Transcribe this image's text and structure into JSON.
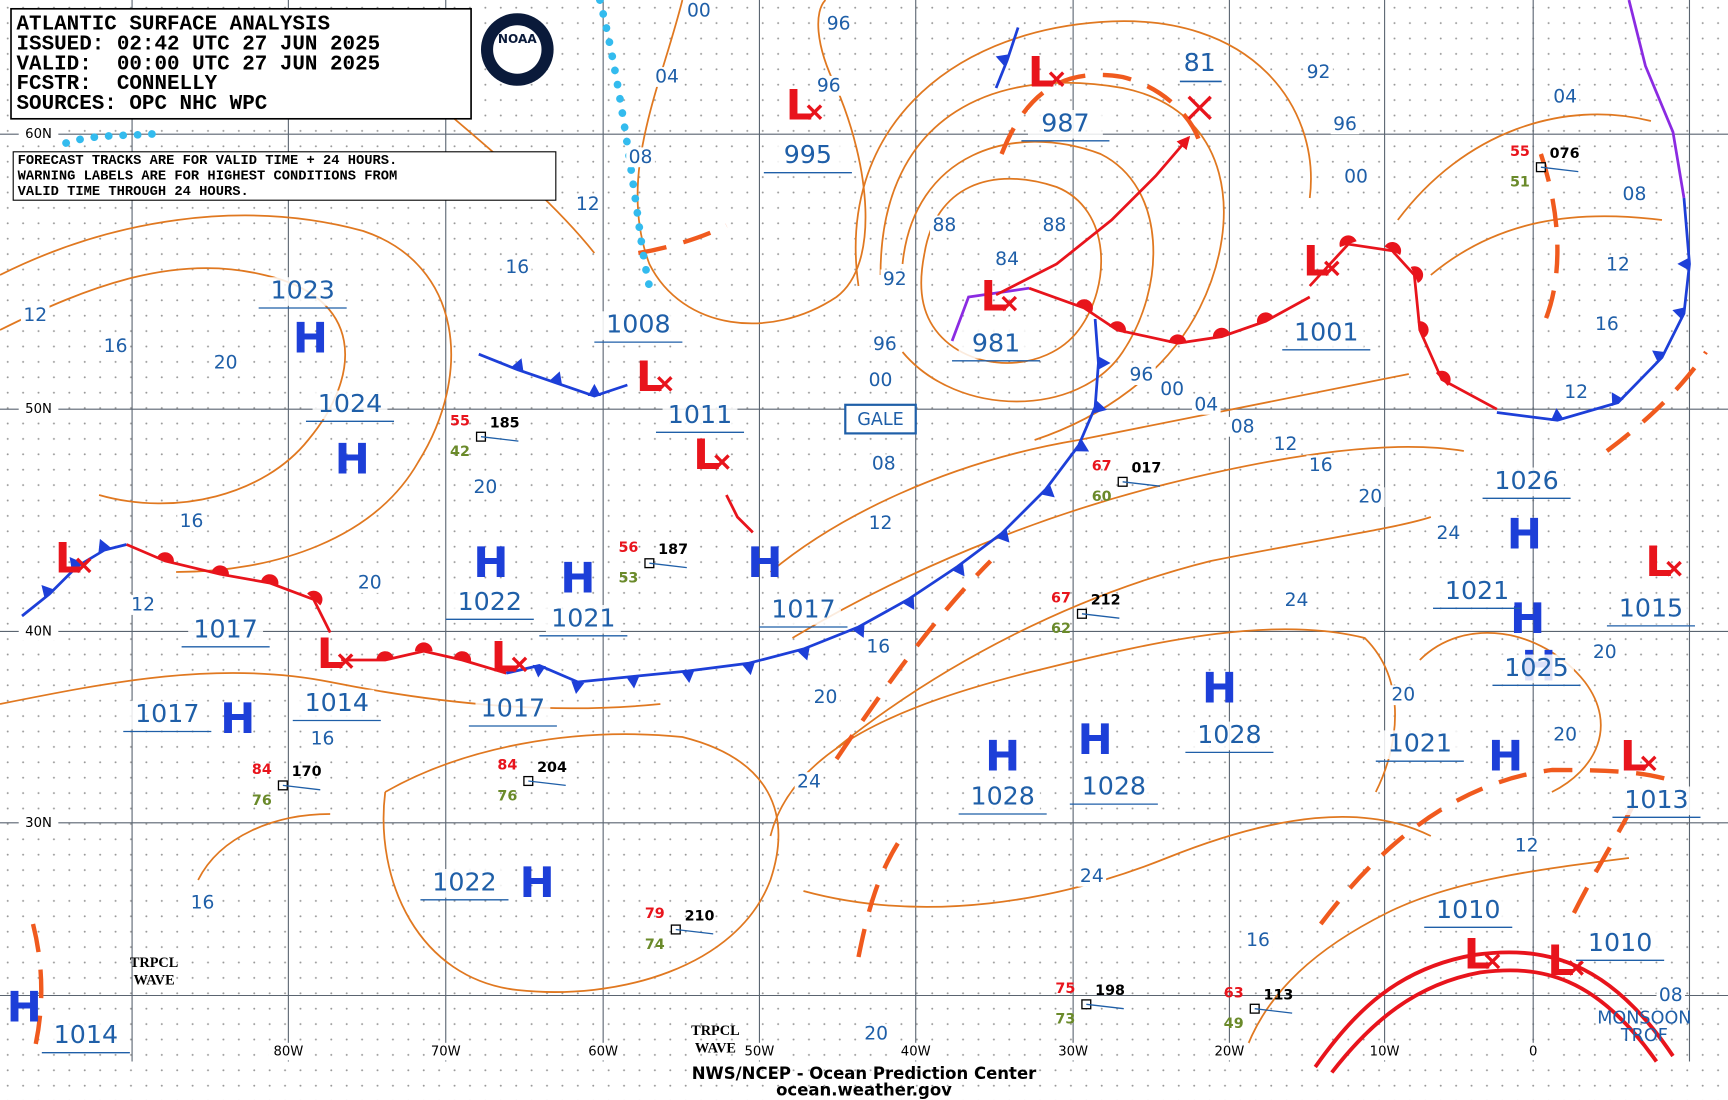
{
  "header": {
    "lines": [
      "ATLANTIC SURFACE ANALYSIS",
      "ISSUED: 02:42 UTC 27 JUN 2025",
      "VALID:  00:00 UTC 27 JUN 2025",
      "FCSTR:  CONNELLY",
      "SOURCES: OPC NHC WPC"
    ],
    "logo": "NOAA"
  },
  "notice": [
    "FORECAST TRACKS ARE FOR VALID TIME + 24 HOURS.",
    "WARNING LABELS ARE FOR HIGHEST CONDITIONS FROM",
    "VALID TIME THROUGH 24 HOURS."
  ],
  "lat_labels": [
    "60N",
    "50N",
    "40N",
    "30N"
  ],
  "lon_labels": [
    "80W",
    "70W",
    "60W",
    "50W",
    "40W",
    "30W",
    "20W",
    "10W",
    "0"
  ],
  "centers": [
    {
      "letter": "H",
      "pressure": "1023"
    },
    {
      "letter": "H",
      "pressure": "1024"
    },
    {
      "letter": "L",
      "pressure": "1008"
    },
    {
      "letter": "L",
      "pressure": "1011"
    },
    {
      "letter": "L",
      "pressure": "995"
    },
    {
      "letter": "L",
      "pressure": "987"
    },
    {
      "letter": "L",
      "pressure": "981"
    },
    {
      "letter": "L",
      "pressure": "1001"
    },
    {
      "letter": "H",
      "pressure": "1022"
    },
    {
      "letter": "H",
      "pressure": "1021"
    },
    {
      "letter": "H",
      "pressure": "1017"
    },
    {
      "letter": "L",
      "pressure": "1017"
    },
    {
      "letter": "H",
      "pressure": "1017"
    },
    {
      "letter": "L",
      "pressure": "1014"
    },
    {
      "letter": "L",
      "pressure": "1017"
    },
    {
      "letter": "H",
      "pressure": "1028"
    },
    {
      "letter": "H",
      "pressure": "1028"
    },
    {
      "letter": "H",
      "pressure": "1028"
    },
    {
      "letter": "H",
      "pressure": "1022"
    },
    {
      "letter": "H",
      "pressure": "1026"
    },
    {
      "letter": "H",
      "pressure": "1021"
    },
    {
      "letter": "H",
      "pressure": "1025"
    },
    {
      "letter": "L",
      "pressure": "1015"
    },
    {
      "letter": "H",
      "pressure": "1021"
    },
    {
      "letter": "L",
      "pressure": "1013"
    },
    {
      "letter": "L",
      "pressure": "1010"
    },
    {
      "letter": "L",
      "pressure": "1010"
    },
    {
      "letter": "H",
      "pressure": "1014"
    }
  ],
  "forecast_position": "81",
  "warnings": [
    "GALE"
  ],
  "annotations": [
    [
      "TRPCL",
      "WAVE"
    ],
    [
      "TRPCL",
      "WAVE"
    ],
    [
      "MONSOON",
      "TROF"
    ]
  ],
  "isobar_labels": [
    "00",
    "96",
    "04",
    "08",
    "12",
    "16",
    "20",
    "16",
    "12",
    "96",
    "92",
    "96",
    "04",
    "00",
    "88",
    "88",
    "84",
    "92",
    "96",
    "00",
    "96",
    "00",
    "04",
    "08",
    "12",
    "16",
    "20",
    "24",
    "08",
    "12",
    "16",
    "20",
    "24",
    "24",
    "20",
    "20",
    "20",
    "16",
    "12",
    "16",
    "16",
    "16",
    "12",
    "20",
    "20",
    "20",
    "24",
    "16",
    "12",
    "12",
    "08",
    "08"
  ],
  "stations": [
    {
      "pressure": "185",
      "temp": "55",
      "dewpoint": "42"
    },
    {
      "pressure": "187",
      "temp": "56",
      "dewpoint": "53"
    },
    {
      "pressure": "017",
      "temp": "67",
      "dewpoint": "60"
    },
    {
      "pressure": "212",
      "temp": "67",
      "dewpoint": "62"
    },
    {
      "pressure": "204",
      "temp": "84",
      "dewpoint": "76"
    },
    {
      "pressure": "170",
      "temp": "84",
      "dewpoint": "76"
    },
    {
      "pressure": "210",
      "temp": "79",
      "dewpoint": "74"
    },
    {
      "pressure": "198",
      "temp": "75",
      "dewpoint": "73"
    },
    {
      "pressure": "113",
      "temp": "63",
      "dewpoint": "49"
    },
    {
      "pressure": "076",
      "temp": "55",
      "dewpoint": "51"
    }
  ],
  "footer": [
    "NWS/NCEP - Ocean Prediction Center",
    "ocean.weather.gov"
  ]
}
